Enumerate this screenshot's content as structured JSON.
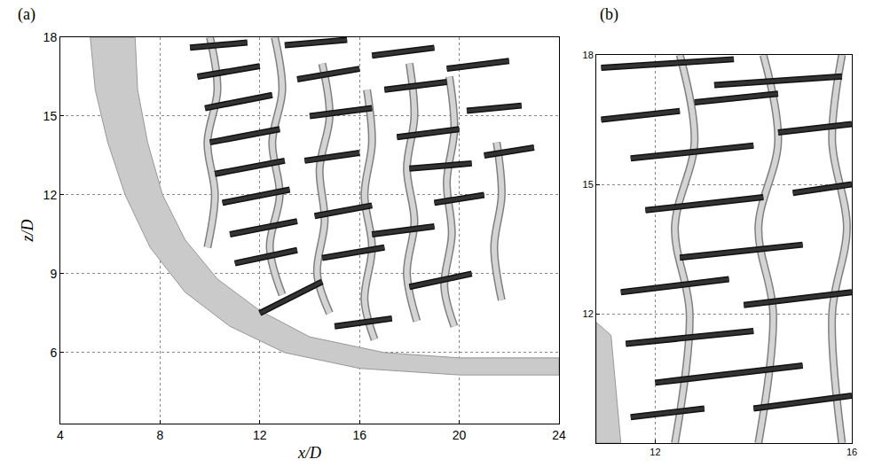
{
  "chart_data": [
    {
      "type": "line",
      "label": "(a)",
      "xlabel": "x/D",
      "ylabel": "z/D",
      "xlim": [
        4,
        24
      ],
      "xticks": [
        4,
        8,
        12,
        16,
        20,
        24
      ],
      "ylim": [
        3.3,
        18
      ],
      "yticks": [
        6,
        9,
        12,
        15,
        18
      ],
      "grid": true,
      "series": [
        {
          "type": "area",
          "color": "#cacaca",
          "x": [
            5.2,
            5.4,
            5.9,
            6.6,
            7.6,
            9,
            10.8,
            13,
            16,
            20,
            24,
            24,
            20,
            17,
            14,
            12,
            10.3,
            9,
            8.1,
            7.5,
            7.1,
            7,
            5.2
          ],
          "values": [
            18,
            16,
            14,
            12,
            10,
            8.3,
            7,
            6,
            5.4,
            5.15,
            5.15,
            5.8,
            5.8,
            6,
            6.6,
            7.6,
            8.8,
            10.3,
            12,
            14,
            16,
            18,
            18
          ]
        },
        {
          "type": "line",
          "color": "#d4d4d4",
          "x": [
            10,
            10.3,
            9.9,
            10.2,
            9.9,
            null,
            12.6,
            12.9,
            12.5,
            12.8,
            12.4,
            12.9,
            null,
            14.5,
            14.8,
            14.4,
            14.6,
            14.3,
            14.8,
            null,
            16.3,
            16.5,
            16.2,
            16.5,
            16.2,
            16.6,
            null,
            18,
            18.2,
            17.9,
            18.2,
            17.9,
            18.3,
            null,
            19.6,
            19.8,
            19.5,
            19.7,
            19.4,
            19.8,
            null,
            21.5,
            21.7,
            21.4,
            21.7
          ],
          "values": [
            18,
            16,
            14,
            12,
            10,
            null,
            18,
            16,
            14,
            12,
            10,
            8.2,
            null,
            17,
            15,
            13,
            11,
            9,
            7.5,
            null,
            16,
            14,
            12,
            10,
            8,
            6.5,
            null,
            17,
            15,
            13,
            11,
            9,
            7.2,
            null,
            16.5,
            14.5,
            12.5,
            10.5,
            8.5,
            7,
            null,
            14,
            12,
            10,
            8
          ]
        },
        {
          "type": "line",
          "color": "#333333",
          "x": [
            9.2,
            11.5,
            null,
            9.5,
            12,
            null,
            9.8,
            12.5,
            null,
            10,
            12.8,
            null,
            10.2,
            13,
            null,
            10.5,
            13.2,
            null,
            10.8,
            13.5,
            null,
            11,
            13.5,
            null,
            12,
            14.5,
            null,
            13,
            15.5,
            null,
            13.5,
            16,
            null,
            14,
            16.5,
            null,
            13.8,
            16,
            null,
            14.2,
            16.5,
            null,
            14.5,
            17,
            null,
            15,
            17.3,
            null,
            16.5,
            19,
            null,
            17,
            19.5,
            null,
            17.5,
            20,
            null,
            18,
            20.5,
            null,
            16.5,
            19,
            null,
            18,
            20.5,
            null,
            19.5,
            22,
            null,
            20.3,
            22.5,
            null,
            21,
            23,
            null,
            19,
            21
          ],
          "values": [
            17.6,
            17.8,
            null,
            16.5,
            16.9,
            null,
            15.3,
            15.8,
            null,
            14,
            14.5,
            null,
            12.8,
            13.3,
            null,
            11.7,
            12.2,
            null,
            10.5,
            11,
            null,
            9.4,
            9.9,
            null,
            7.5,
            8.7,
            null,
            17.7,
            17.9,
            null,
            16.4,
            16.8,
            null,
            15,
            15.3,
            null,
            13.3,
            13.6,
            null,
            11.2,
            11.6,
            null,
            9.6,
            10,
            null,
            7,
            7.3,
            null,
            17.3,
            17.6,
            null,
            16,
            16.3,
            null,
            14.2,
            14.5,
            null,
            13,
            13.2,
            null,
            10.5,
            10.8,
            null,
            8.5,
            9,
            null,
            16.8,
            17.1,
            null,
            15.2,
            15.4,
            null,
            13.5,
            13.8,
            null,
            11.7,
            12
          ]
        }
      ]
    },
    {
      "type": "line",
      "label": "(b)",
      "xlim": [
        10.8,
        16
      ],
      "xticks": [
        12,
        16
      ],
      "ylim": [
        9,
        18
      ],
      "yticks": [
        12,
        15,
        18
      ],
      "grid": true,
      "series": [
        {
          "type": "area",
          "color": "#cacaca",
          "x": [
            10.8,
            11.3,
            11.1,
            10.8,
            10.8
          ],
          "values": [
            9,
            9,
            11.5,
            11.8,
            9
          ]
        },
        {
          "type": "line",
          "color": "#d4d4d4",
          "x": [
            12.5,
            12.8,
            12.4,
            12.7,
            12.4,
            null,
            14.2,
            14.5,
            14.1,
            14.4,
            14.1,
            null,
            15.8,
            15.6,
            15.9,
            15.6,
            15.8
          ],
          "values": [
            18,
            16,
            14,
            12,
            9,
            null,
            18,
            16,
            14,
            12,
            9,
            null,
            18,
            16,
            14,
            12,
            9
          ]
        },
        {
          "type": "line",
          "color": "#333333",
          "x": [
            10.9,
            13.6,
            null,
            13.2,
            15.8,
            null,
            10.9,
            12.5,
            null,
            12.8,
            14.5,
            null,
            11.5,
            14,
            null,
            14.5,
            16,
            null,
            11.8,
            14.2,
            null,
            12.5,
            15,
            null,
            14.8,
            16,
            null,
            11.3,
            13.5,
            null,
            13.8,
            16,
            null,
            11.4,
            14,
            null,
            12,
            15,
            null,
            11.5,
            13,
            null,
            14,
            16
          ],
          "values": [
            17.7,
            17.9,
            null,
            17.3,
            17.5,
            null,
            16.5,
            16.7,
            null,
            16.9,
            17.1,
            null,
            15.6,
            15.9,
            null,
            16.2,
            16.4,
            null,
            14.4,
            14.7,
            null,
            13.3,
            13.6,
            null,
            14.8,
            15,
            null,
            12.5,
            12.8,
            null,
            12.2,
            12.5,
            null,
            11.3,
            11.6,
            null,
            10.4,
            10.8,
            null,
            9.6,
            9.8,
            null,
            9.8,
            10.1
          ]
        }
      ]
    }
  ]
}
